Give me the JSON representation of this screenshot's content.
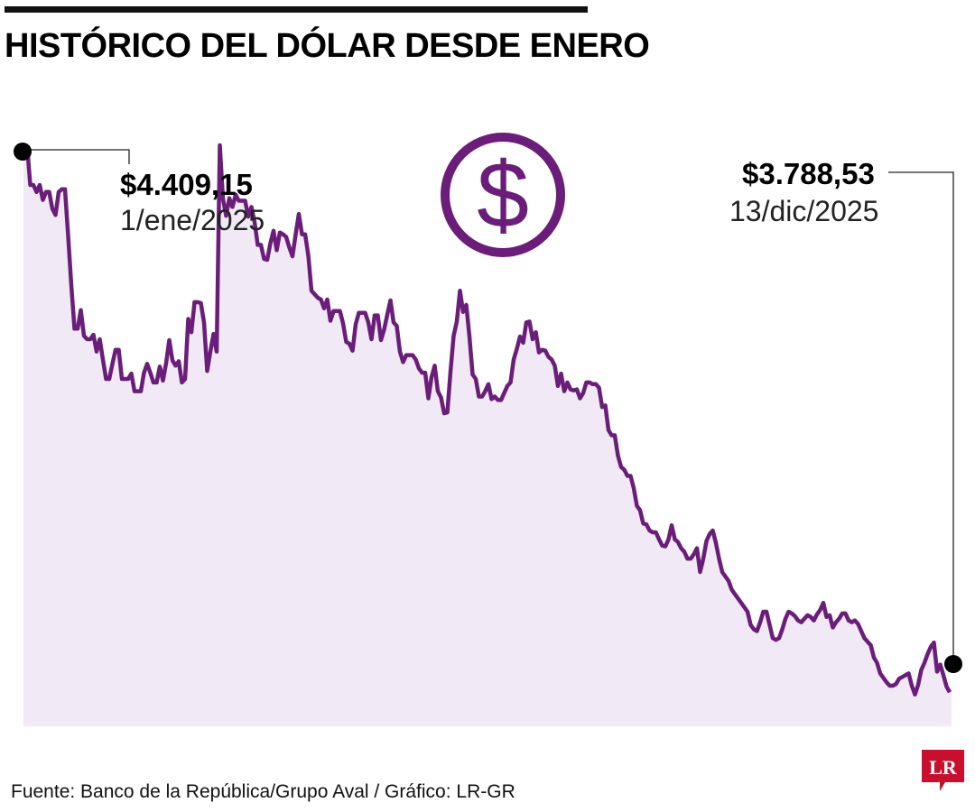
{
  "title": "HISTÓRICO DEL DÓLAR DESDE ENERO",
  "source": "Fuente: Banco de la República/Grupo Aval / Gráfico: LR-GR",
  "logo_text": "LR",
  "icon": "dollar-sign-icon",
  "colors": {
    "line": "#6a1d79",
    "fill": "#f1e9f5",
    "logo": "#c8102e"
  },
  "annotations": {
    "start": {
      "value": "$4.409,15",
      "date": "1/ene/2025"
    },
    "end": {
      "value": "$3.788,53",
      "date": "13/dic/2025"
    }
  },
  "chart_data": {
    "type": "area",
    "title": "HISTÓRICO DEL DÓLAR DESDE ENERO",
    "xlabel": "",
    "ylabel": "",
    "x_range": [
      "2025-01-01",
      "2025-12-13"
    ],
    "ylim": [
      3750,
      4410
    ],
    "grid": false,
    "values": [
      4409.15,
      4364,
      4364,
      4356,
      4364,
      4347,
      4356,
      4356,
      4337,
      4330,
      4356,
      4359,
      4359,
      4306,
      4250,
      4201,
      4201,
      4222,
      4193,
      4189,
      4189,
      4194,
      4175,
      4189,
      4166,
      4144,
      4144,
      4161,
      4177,
      4177,
      4144,
      4144,
      4144,
      4150,
      4130,
      4130,
      4130,
      4151,
      4161,
      4151,
      4140,
      4140,
      4158,
      4142,
      4162,
      4188,
      4165,
      4159,
      4164,
      4140,
      4144,
      4212,
      4197,
      4231,
      4231,
      4230,
      4208,
      4153,
      4175,
      4195,
      4175,
      4409,
      4348,
      4329,
      4349,
      4339,
      4353,
      4346,
      4346,
      4346,
      4328,
      4339,
      4322,
      4296,
      4296,
      4280,
      4279,
      4298,
      4312,
      4290,
      4310,
      4308,
      4305,
      4293,
      4283,
      4308,
      4331,
      4308,
      4308,
      4284,
      4244,
      4240,
      4236,
      4234,
      4224,
      4234,
      4210,
      4221,
      4221,
      4221,
      4207,
      4186,
      4184,
      4176,
      4206,
      4219,
      4219,
      4219,
      4208,
      4189,
      4216,
      4216,
      4188,
      4200,
      4217,
      4233,
      4208,
      4204,
      4175,
      4163,
      4171,
      4171,
      4171,
      4166,
      4156,
      4151,
      4151,
      4122,
      4146,
      4159,
      4130,
      4123,
      4105,
      4106,
      4152,
      4193,
      4209,
      4244,
      4220,
      4228,
      4192,
      4149,
      4144,
      4124,
      4124,
      4130,
      4138,
      4121,
      4124,
      4120,
      4120,
      4128,
      4136,
      4140,
      4166,
      4178,
      4192,
      4185,
      4208,
      4209,
      4189,
      4197,
      4174,
      4177,
      4176,
      4169,
      4166,
      4159,
      4136,
      4150,
      4130,
      4140,
      4132,
      4131,
      4132,
      4122,
      4128,
      4140,
      4140,
      4138,
      4138,
      4134,
      4112,
      4114,
      4086,
      4080,
      4080,
      4057,
      4044,
      4041,
      4034,
      4034,
      4020,
      4000,
      3995,
      3980,
      3979,
      3972,
      3970,
      3970,
      3962,
      3955,
      3954,
      3962,
      3978,
      3962,
      3959,
      3952,
      3948,
      3940,
      3940,
      3945,
      3952,
      3925,
      3940,
      3960,
      3968,
      3972,
      3958,
      3940,
      3925,
      3920,
      3915,
      3905,
      3900,
      3895,
      3890,
      3885,
      3880,
      3865,
      3860,
      3858,
      3868,
      3880,
      3880,
      3865,
      3850,
      3848,
      3850,
      3860,
      3872,
      3880,
      3878,
      3875,
      3870,
      3868,
      3872,
      3876,
      3874,
      3870,
      3877,
      3882,
      3890,
      3874,
      3876,
      3862,
      3868,
      3872,
      3878,
      3878,
      3870,
      3868,
      3870,
      3866,
      3858,
      3850,
      3846,
      3842,
      3828,
      3822,
      3810,
      3805,
      3800,
      3796,
      3796,
      3798,
      3804,
      3806,
      3808,
      3810,
      3796,
      3786,
      3797,
      3814,
      3822,
      3832,
      3840,
      3845,
      3812,
      3820,
      3808,
      3795,
      3788.53
    ]
  }
}
